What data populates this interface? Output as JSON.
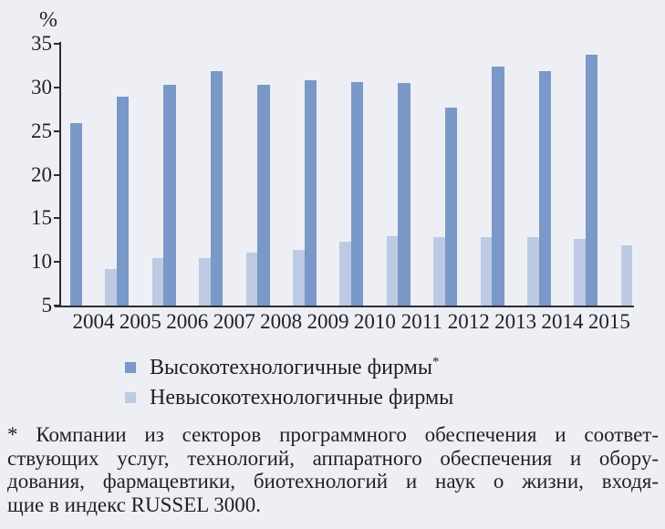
{
  "chart_data": {
    "type": "bar",
    "title": "",
    "xlabel": "",
    "ylabel": "%",
    "ylim": [
      5,
      35
    ],
    "y_ticks": [
      35,
      30,
      25,
      20,
      15,
      10,
      5
    ],
    "grid": false,
    "legend_position": "below",
    "categories": [
      "2004",
      "2005",
      "2006",
      "2007",
      "2008",
      "2009",
      "2010",
      "2011",
      "2012",
      "2013",
      "2014",
      "2015"
    ],
    "series": [
      {
        "name": "Высокотехнологичные фирмы*",
        "color": "#7a98c8",
        "values": [
          25.9,
          28.9,
          30.3,
          31.9,
          30.3,
          30.8,
          30.6,
          30.5,
          27.7,
          32.4,
          31.9,
          33.8
        ]
      },
      {
        "name": "Невысокотехнологичные фирмы",
        "color": "#bdcae3",
        "values": [
          9.2,
          10.4,
          10.4,
          11.1,
          11.4,
          12.3,
          13.0,
          12.8,
          12.8,
          12.8,
          12.6,
          11.9
        ]
      }
    ]
  },
  "legend": {
    "items": [
      {
        "label": "Высокотехнологичные фирмы",
        "suffix": "*",
        "color": "#7a98c8"
      },
      {
        "label": "Невысокотехнологичные фирмы",
        "suffix": "",
        "color": "#bdcae3"
      }
    ]
  },
  "footnote": {
    "lines": [
      "* Компании из секторов программного обеспечения и соответ-",
      "ствующих услуг, технологий, аппаратного обеспечения и обору-",
      "дования, фармацевтики, биотехнологий и наук о жизни, входя-",
      "щие в индекс RUSSEL 3000."
    ]
  }
}
